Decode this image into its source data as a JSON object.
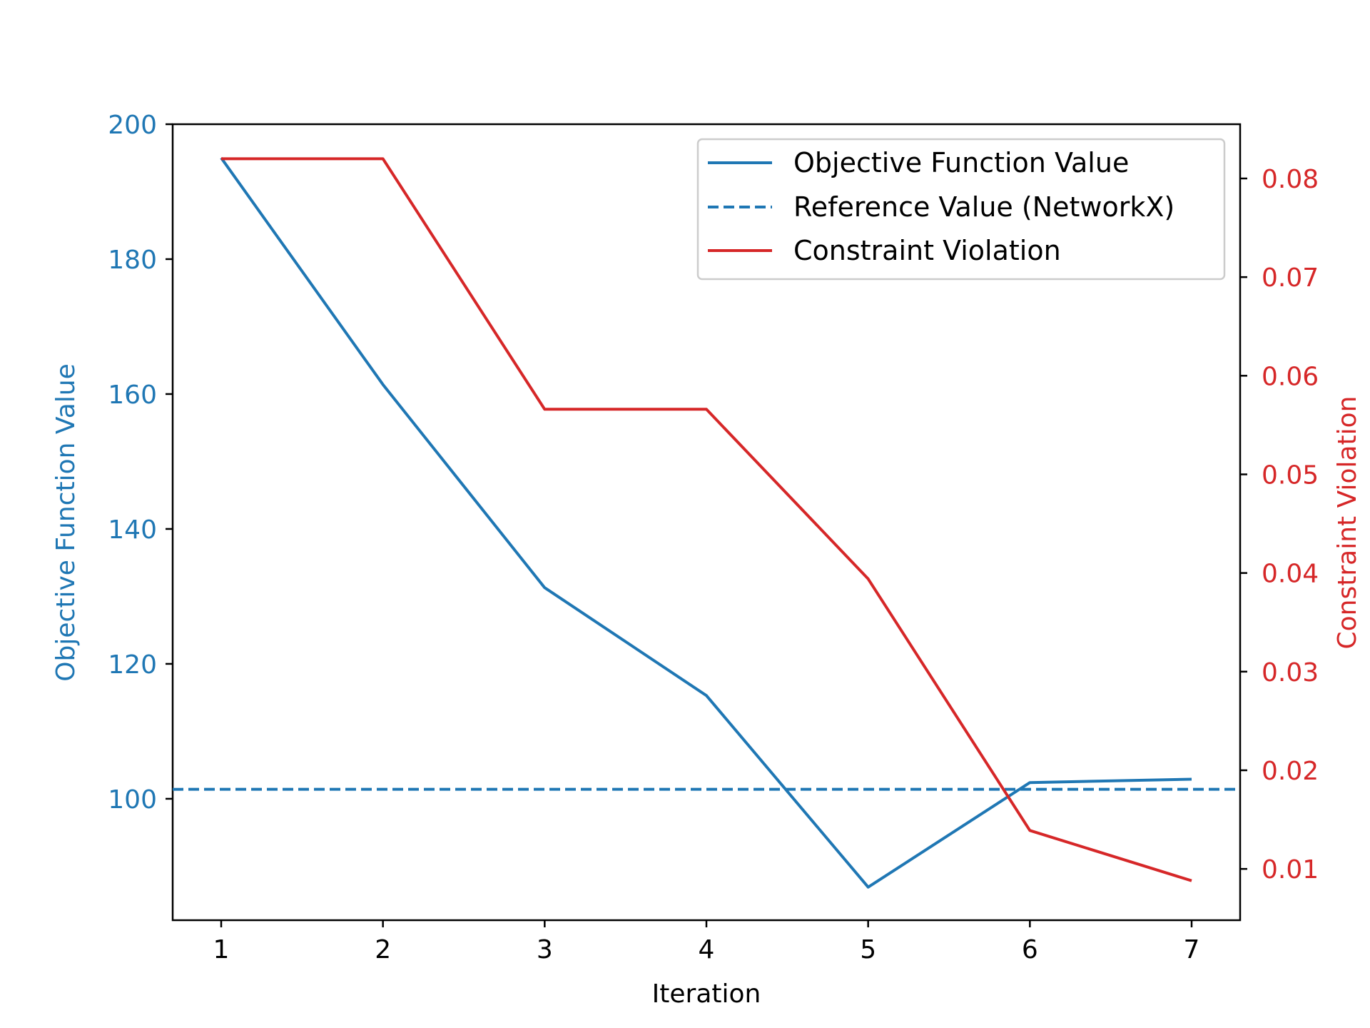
{
  "chart_data": {
    "type": "line",
    "x": [
      1,
      2,
      3,
      4,
      5,
      6,
      7
    ],
    "xlabel": "Iteration",
    "xlim": [
      0.7,
      7.3
    ],
    "x_ticks": [
      "1",
      "2",
      "3",
      "4",
      "5",
      "6",
      "7"
    ],
    "left_axis": {
      "label": "Objective Function Value",
      "ylim": [
        82,
        200
      ],
      "ticks": [
        "100",
        "120",
        "140",
        "160",
        "180",
        "200"
      ],
      "tick_values": [
        100,
        120,
        140,
        160,
        180,
        200
      ],
      "color": "#1f77b4"
    },
    "right_axis": {
      "label": "Constraint Violation",
      "ylim": [
        0.0048,
        0.0855
      ],
      "ticks": [
        "0.01",
        "0.02",
        "0.03",
        "0.04",
        "0.05",
        "0.06",
        "0.07",
        "0.08"
      ],
      "tick_values": [
        0.01,
        0.02,
        0.03,
        0.04,
        0.05,
        0.06,
        0.07,
        0.08
      ],
      "color": "#d62728"
    },
    "series": [
      {
        "name": "Objective Function Value",
        "axis": "left",
        "style": "solid",
        "color": "#1f77b4",
        "values": [
          195,
          161.4,
          131.3,
          115.3,
          86.9,
          102.4,
          102.9
        ]
      },
      {
        "name": "Reference Value (NetworkX)",
        "axis": "left",
        "style": "dashed",
        "color": "#1f77b4",
        "constant": 101.4
      },
      {
        "name": "Constraint Violation",
        "axis": "right",
        "style": "solid",
        "color": "#d62728",
        "values": [
          0.082,
          0.082,
          0.0566,
          0.0566,
          0.0394,
          0.0139,
          0.0088
        ]
      }
    ],
    "legend": {
      "position": "top-right",
      "entries": [
        "Objective Function Value",
        "Reference Value (NetworkX)",
        "Constraint Violation"
      ]
    },
    "grid": false
  }
}
